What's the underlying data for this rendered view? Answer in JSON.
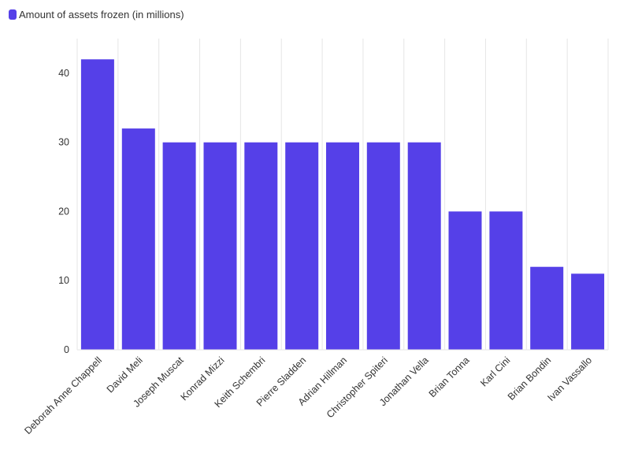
{
  "legend": {
    "label": "Amount of assets frozen (in millions)",
    "color": "#5540e8"
  },
  "chart_data": {
    "type": "bar",
    "categories": [
      "Deborah Anne Chappell",
      "David Meli",
      "Joseph Muscat",
      "Konrad Mizzi",
      "Keith Schembri",
      "Pierre Sladden",
      "Adrian Hillman",
      "Christopher Spiteri",
      "Jonathan Vella",
      "Brian Tonna",
      "Karl Cini",
      "Brian Bondin",
      "Ivan Vassallo"
    ],
    "series": [
      {
        "name": "Amount of assets frozen (in millions)",
        "values": [
          42,
          32,
          30,
          30,
          30,
          30,
          30,
          30,
          30,
          20,
          20,
          12,
          11
        ],
        "color": "#5540e8"
      }
    ],
    "yticks": [
      0,
      10,
      20,
      30,
      40
    ],
    "ylim": [
      0,
      45
    ],
    "grid": "vertical",
    "legend_position": "top-left"
  }
}
